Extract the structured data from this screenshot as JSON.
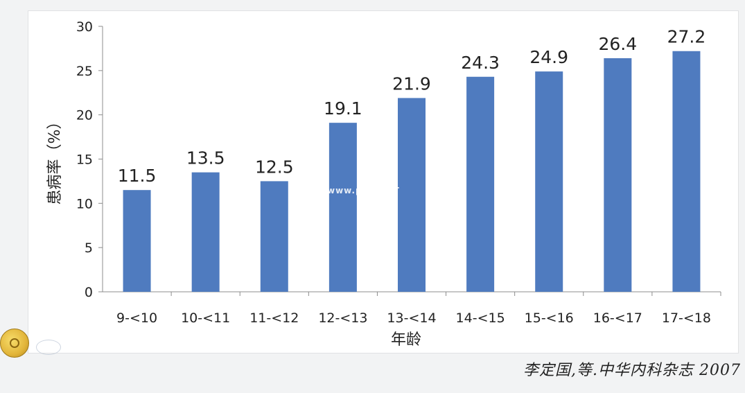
{
  "chart_data": {
    "type": "bar",
    "categories": [
      "9-<10",
      "10-<11",
      "11-<12",
      "12-<13",
      "13-<14",
      "14-<15",
      "15-<16",
      "16-<17",
      "17-<18"
    ],
    "values": [
      11.5,
      13.5,
      12.5,
      19.1,
      21.9,
      24.3,
      24.9,
      26.4,
      27.2
    ],
    "data_labels": [
      "11.5",
      "13.5",
      "12.5",
      "19.1",
      "21.9",
      "24.3",
      "24.9",
      "26.4",
      "27.2"
    ],
    "xlabel": "年龄",
    "ylabel": "患病率（%）",
    "ylim": [
      0,
      30
    ],
    "yticks": [
      "0",
      "5",
      "10",
      "15",
      "20",
      "25",
      "30"
    ],
    "grid": false,
    "bar_color": "#4f7bbf"
  },
  "citation": "李定国,等.中华内科杂志 2007",
  "watermark": "www.pc...NET"
}
